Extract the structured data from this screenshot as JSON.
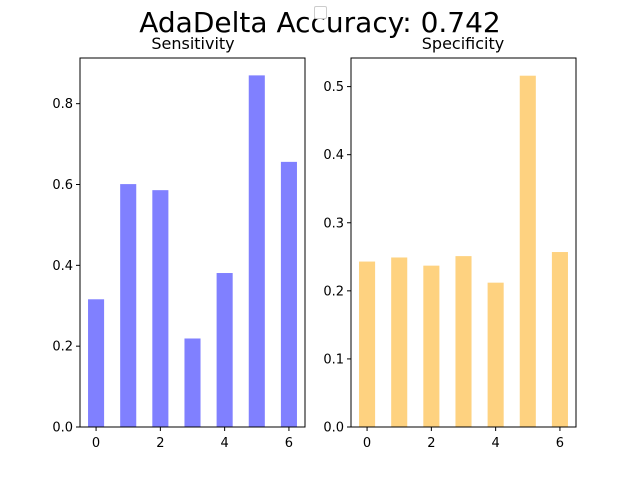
{
  "chart_data": {
    "suptitle": "AdaDelta Accuracy: 0.742",
    "panels": [
      {
        "type": "bar",
        "title": "Sensitivity",
        "color": "#8080ff",
        "categories": [
          0,
          1,
          2,
          3,
          4,
          5,
          6
        ],
        "values": [
          0.316,
          0.601,
          0.586,
          0.219,
          0.381,
          0.87,
          0.656
        ],
        "ylim": [
          0,
          0.913
        ],
        "xlim": [
          -0.5,
          6.5
        ],
        "yticks": [
          0.0,
          0.2,
          0.4,
          0.6,
          0.8
        ],
        "ytick_labels": [
          "0.0",
          "0.2",
          "0.4",
          "0.6",
          "0.8"
        ],
        "xticks": [
          0,
          2,
          4,
          6
        ],
        "xtick_labels": [
          "0",
          "2",
          "4",
          "6"
        ]
      },
      {
        "type": "bar",
        "title": "Specificity",
        "color": "#fed280",
        "categories": [
          0,
          1,
          2,
          3,
          4,
          5,
          6
        ],
        "values": [
          0.243,
          0.249,
          0.237,
          0.251,
          0.212,
          0.516,
          0.257
        ],
        "ylim": [
          0,
          0.542
        ],
        "xlim": [
          -0.5,
          6.5
        ],
        "yticks": [
          0.0,
          0.1,
          0.2,
          0.3,
          0.4,
          0.5
        ],
        "ytick_labels": [
          "0.0",
          "0.1",
          "0.2",
          "0.3",
          "0.4",
          "0.5"
        ],
        "xticks": [
          0,
          2,
          4,
          6
        ],
        "xtick_labels": [
          "0",
          "2",
          "4",
          "6"
        ]
      }
    ]
  }
}
